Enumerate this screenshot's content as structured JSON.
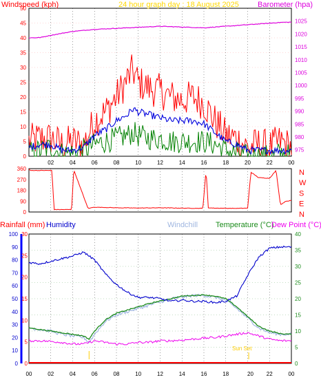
{
  "header": {
    "wind_label": "Windspeed (kph)",
    "title": "24 hour graph day : 18 August 2025",
    "baro_label": "Barometer (hpa)"
  },
  "lower_header": {
    "rain_label": "Rainfall (mm)",
    "humidity_label": "Humidity",
    "windchill_label": "Windchill",
    "temp_label": "Temperature (°C)",
    "dew_label": "Dew Point (°C)"
  },
  "sun": {
    "sunset_label": "Sun Set",
    "sunrise_marker_hour": 5.5,
    "sunset_marker_hour": 20.1
  },
  "colors": {
    "wind": "#ff0000",
    "gust_fill": "#ff0000",
    "wind_avg": "#0000dd",
    "wind_green": "#008000",
    "barometer": "#dd00dd",
    "humidity": "#0000cc",
    "windchill": "#9fb6e0",
    "temperature": "#1a8a1a",
    "dewpoint": "#ee00ee",
    "rain": "#ff0000",
    "sunset": "#ffcc00",
    "grid": "#000000"
  },
  "chart_data": [
    {
      "type": "line",
      "name": "wind_and_barometer",
      "x_axis": {
        "ticks": [
          "02",
          "04",
          "06",
          "08",
          "10",
          "12",
          "14",
          "16",
          "18",
          "20",
          "22",
          "00"
        ]
      },
      "y_left": {
        "label": "Windspeed (kph)",
        "range": [
          0,
          50
        ],
        "ticks": [
          0,
          5,
          10,
          15,
          20,
          25,
          30,
          35,
          40,
          45,
          50
        ]
      },
      "y_right": {
        "label": "Barometer (hpa)",
        "range": [
          972.5,
          1030
        ],
        "ticks": [
          975,
          980,
          985,
          990,
          995,
          1000,
          1005,
          1010,
          1015,
          1020,
          1025
        ]
      },
      "series": [
        {
          "name": "Windspeed",
          "axis": "left",
          "style": "gust",
          "x": [
            0,
            1,
            2,
            3,
            4,
            5,
            5.5,
            6,
            7,
            8,
            9,
            9.5,
            10,
            11,
            12,
            13,
            14,
            15,
            16,
            17,
            18,
            19,
            20,
            21,
            22,
            23,
            24
          ],
          "y": [
            5,
            6,
            6,
            4,
            5,
            4,
            8,
            12,
            15,
            20,
            26,
            29,
            25,
            23,
            22,
            20,
            19,
            20,
            18,
            12,
            7,
            6,
            3,
            4,
            3,
            5,
            3
          ]
        },
        {
          "name": "Wind average",
          "axis": "left",
          "style": "line",
          "x": [
            0,
            1,
            2,
            3,
            4,
            5,
            5.5,
            6,
            7,
            8,
            9,
            9.5,
            10,
            11,
            12,
            13,
            14,
            15,
            16,
            17,
            18,
            19,
            20,
            21,
            22,
            23,
            24
          ],
          "y": [
            3,
            4,
            4,
            2,
            2,
            3,
            5,
            7,
            9,
            12,
            14,
            16,
            15,
            14,
            13,
            12,
            12,
            12,
            11,
            8,
            5,
            4,
            2,
            2,
            2,
            2,
            2
          ]
        },
        {
          "name": "Wind low",
          "axis": "left",
          "style": "band",
          "x": [
            0,
            1,
            2,
            3,
            4,
            5,
            5.5,
            6,
            7,
            8,
            9,
            9.5,
            10,
            11,
            12,
            13,
            14,
            15,
            16,
            17,
            18,
            19,
            20,
            21,
            22,
            23,
            24
          ],
          "y": [
            1,
            2,
            3,
            1,
            1,
            2,
            3,
            4,
            5,
            6,
            7,
            8,
            7,
            6,
            6,
            5,
            5,
            5,
            5,
            4,
            2,
            1,
            0,
            0,
            0,
            1,
            0
          ]
        },
        {
          "name": "Barometer",
          "axis": "right",
          "style": "line",
          "x": [
            0,
            1,
            2,
            4,
            6,
            8,
            10,
            12,
            14,
            16,
            18,
            20,
            22,
            23,
            24
          ],
          "y": [
            1018.5,
            1018.6,
            1019.5,
            1021,
            1021.8,
            1022.2,
            1022.6,
            1023.0,
            1022.7,
            1022.4,
            1023.0,
            1023.6,
            1024.2,
            1024.5,
            1024.6
          ]
        }
      ]
    },
    {
      "type": "line",
      "name": "wind_direction",
      "y_left": {
        "range": [
          0,
          360
        ],
        "ticks": [
          0,
          90,
          180,
          270,
          360
        ]
      },
      "y_right_letters": [
        "N",
        "W",
        "S",
        "E",
        "N"
      ],
      "series": [
        {
          "name": "Wind direction",
          "x": [
            0,
            0.1,
            0.4,
            2.1,
            2.3,
            3.9,
            4.1,
            5.4,
            6,
            8,
            10,
            12,
            14,
            15.9,
            16.2,
            16.4,
            17,
            19,
            20,
            20.3,
            21,
            22,
            22.6,
            23,
            23.5,
            24
          ],
          "y": [
            355,
            345,
            345,
            345,
            20,
            20,
            350,
            30,
            40,
            35,
            33,
            35,
            32,
            30,
            345,
            35,
            32,
            30,
            32,
            330,
            285,
            280,
            345,
            60,
            90,
            95
          ]
        }
      ]
    },
    {
      "type": "line",
      "name": "rain_humidity_temperature",
      "x_axis": {
        "ticks": [
          "00",
          "02",
          "04",
          "06",
          "08",
          "10",
          "12",
          "14",
          "16",
          "18",
          "20",
          "22",
          "00"
        ]
      },
      "y_rain": {
        "label": "Rainfall (mm)",
        "range": [
          0,
          30
        ],
        "ticks": [
          0,
          5,
          10,
          15,
          20,
          25,
          30
        ]
      },
      "y_humidity": {
        "label": "Humidity",
        "range": [
          0,
          100
        ],
        "ticks": [
          0,
          10,
          20,
          30,
          40,
          50,
          60,
          70,
          80,
          90,
          100
        ]
      },
      "y_temp": {
        "label": "Temperature (°C)",
        "range": [
          0,
          40
        ],
        "ticks": [
          0,
          5,
          10,
          15,
          20,
          25,
          30,
          35,
          40
        ]
      },
      "series": [
        {
          "name": "Humidity",
          "axis": "humidity",
          "x": [
            0,
            1,
            2,
            3,
            4,
            5,
            6,
            7,
            8,
            9,
            10,
            11,
            12,
            13,
            14,
            15,
            16,
            17,
            18,
            19,
            20,
            21,
            22,
            23,
            24
          ],
          "y": [
            78,
            77,
            79,
            81,
            83,
            86,
            80,
            69,
            61,
            55,
            51,
            51,
            50,
            48,
            49,
            48,
            48,
            47,
            48,
            52,
            68,
            82,
            89,
            90,
            90
          ]
        },
        {
          "name": "Windchill",
          "axis": "temp",
          "x": [
            0,
            1,
            2,
            3,
            4,
            5,
            5.5,
            6,
            7,
            8,
            9,
            10,
            11,
            12,
            13,
            14,
            15,
            16,
            17,
            18,
            19,
            20,
            21,
            22,
            23,
            24
          ],
          "y": [
            11,
            10.5,
            10,
            9,
            8.5,
            8,
            6.5,
            9,
            13,
            15,
            16,
            17,
            18,
            19,
            20,
            20.5,
            21,
            21,
            20.5,
            19.5,
            17,
            14,
            11,
            9.5,
            9,
            9
          ]
        },
        {
          "name": "Temperature",
          "axis": "temp",
          "x": [
            0,
            1,
            2,
            3,
            4,
            5,
            5.5,
            6,
            7,
            8,
            9,
            10,
            11,
            12,
            13,
            14,
            15,
            16,
            17,
            18,
            19,
            20,
            21,
            22,
            23,
            24
          ],
          "y": [
            11,
            10.5,
            10,
            9.5,
            9,
            8.5,
            7.5,
            10,
            13.5,
            15.5,
            16.5,
            17.5,
            18.5,
            19.3,
            20,
            20.8,
            21,
            21.2,
            20.8,
            20,
            17.5,
            14.5,
            11.5,
            10,
            9.2,
            9
          ]
        },
        {
          "name": "Dew Point",
          "axis": "temp",
          "x": [
            0,
            1,
            2,
            3,
            4,
            5,
            6,
            7,
            8,
            9,
            10,
            11,
            12,
            13,
            14,
            15,
            16,
            17,
            18,
            19,
            20,
            21,
            22,
            23,
            24
          ],
          "y": [
            7,
            7,
            6.8,
            6.5,
            6,
            6,
            7,
            6.5,
            6,
            6,
            6.5,
            6.5,
            7,
            7,
            7.2,
            7.5,
            7.8,
            8,
            8.5,
            9,
            9.5,
            8.5,
            7.5,
            7,
            7
          ]
        },
        {
          "name": "Rainfall",
          "axis": "rain",
          "x": [
            0,
            24
          ],
          "y": [
            0,
            0
          ]
        }
      ]
    }
  ]
}
